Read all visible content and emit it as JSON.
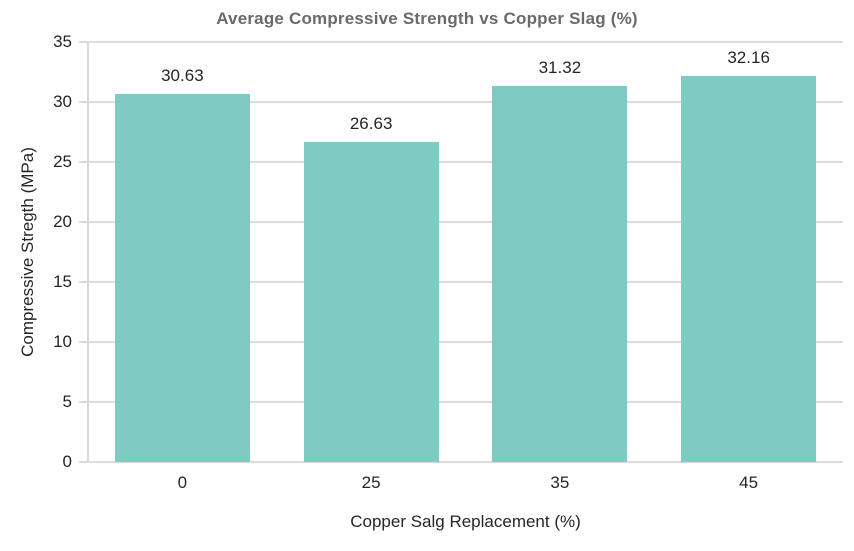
{
  "chart_data": {
    "type": "bar",
    "title": "Average Compressive Strength vs Copper Slag (%)",
    "xlabel": "Copper Salg Replacement (%)",
    "ylabel": "Compressive Stregth (MPa)",
    "categories": [
      "0",
      "25",
      "35",
      "45"
    ],
    "values": [
      30.63,
      26.63,
      31.32,
      32.16
    ],
    "value_labels": [
      "30.63",
      "26.63",
      "31.32",
      "32.16"
    ],
    "ylim": [
      0,
      35
    ],
    "yticks": [
      0,
      5,
      10,
      15,
      20,
      25,
      30,
      35
    ],
    "grid": true,
    "legend_position": "none",
    "colors": {
      "bar_fill": "#7ecbc3",
      "gridline": "#dcdcdc",
      "axis_line": "#d9d9d9",
      "tick_text": "#262626",
      "title_text": "#6a6a6a",
      "background": "#ffffff"
    }
  }
}
